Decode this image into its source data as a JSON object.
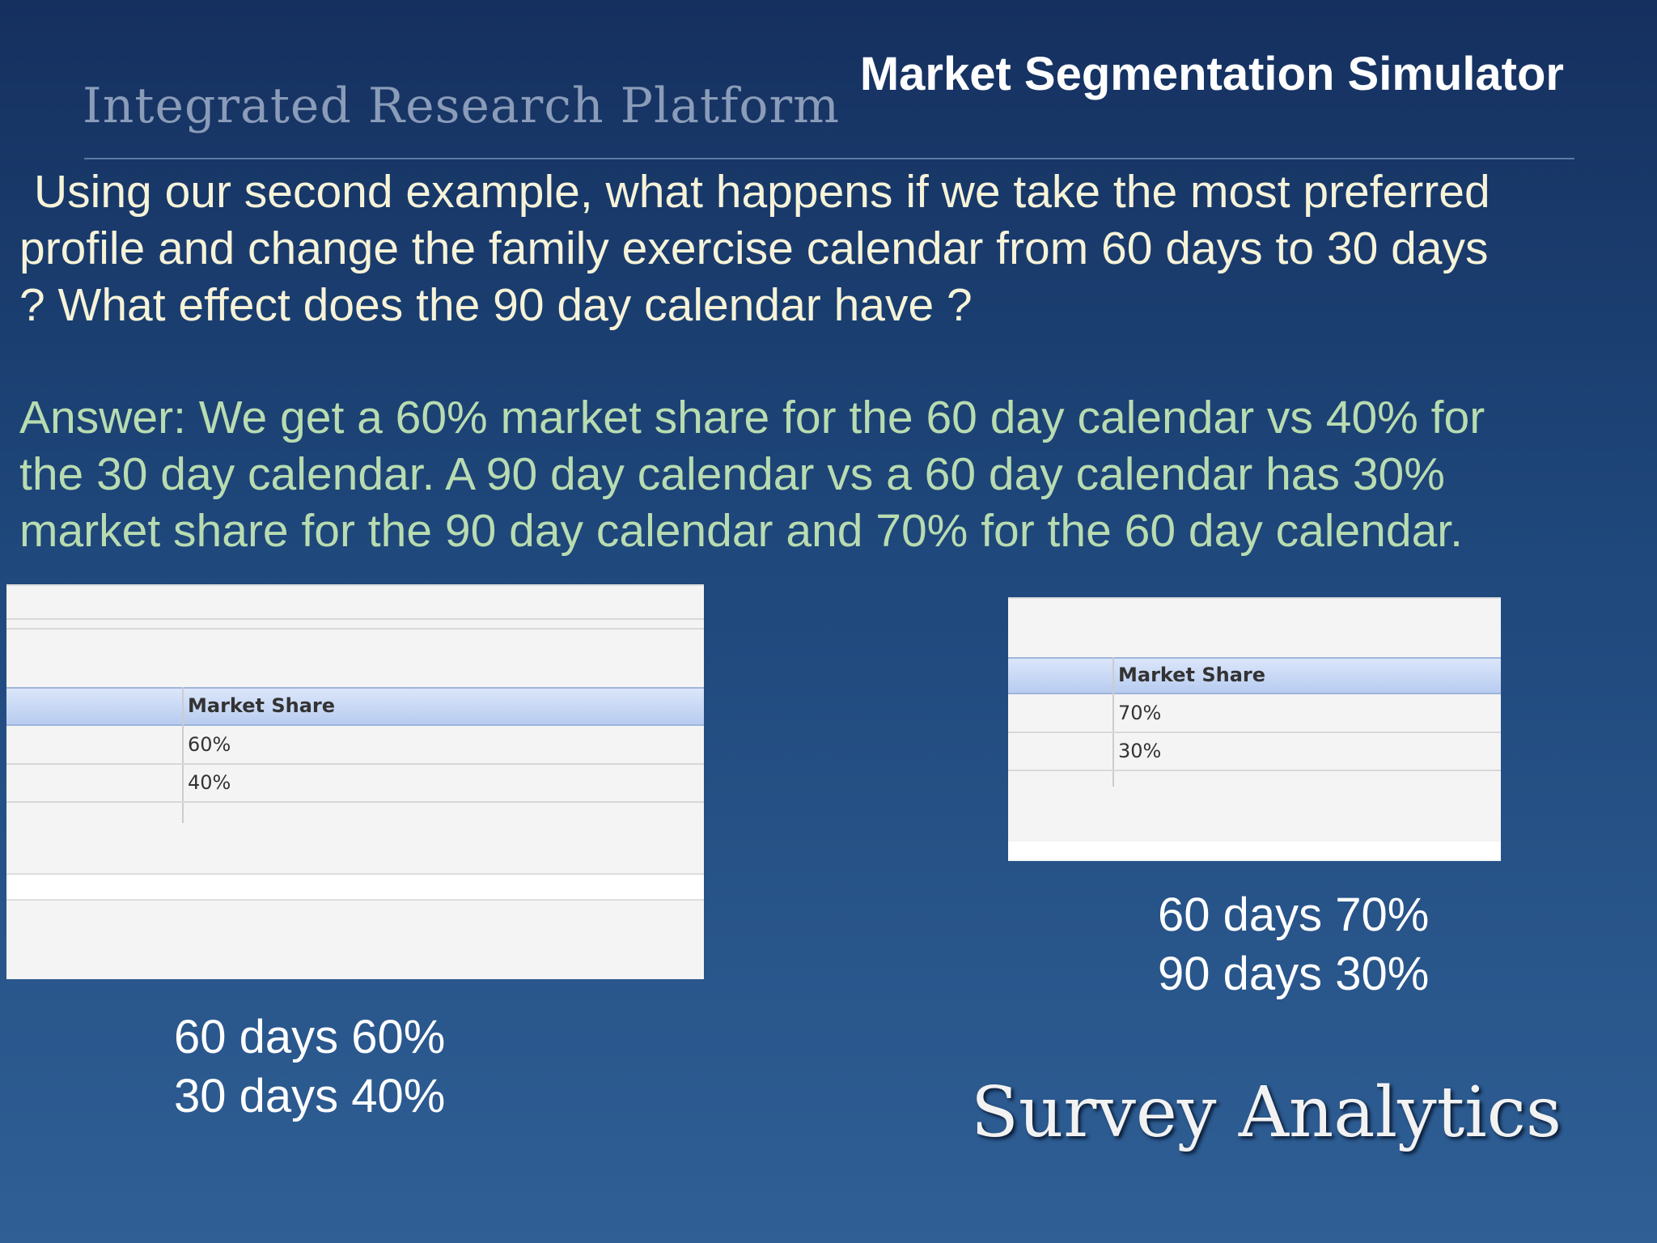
{
  "header": {
    "brand": "Integrated Research Platform",
    "title": "Market Segmentation Simulator"
  },
  "question": [
    "Using our second example, what happens if we take the most preferred",
    "profile and change the family exercise calendar from 60 days to 30 days",
    "? What effect does the 90 day calendar have ?"
  ],
  "answer": [
    "Answer:  We get a 60% market share for the 60 day calendar vs 40% for",
    "the 30 day calendar. A 90 day calendar vs a 60 day calendar has 30%",
    "market share for the 90 day calendar and 70% for the 60 day calendar."
  ],
  "tables": [
    {
      "header": "Market Share",
      "rows": [
        "60%",
        "40%"
      ],
      "caption": [
        "60 days 60%",
        "30 days 40%"
      ]
    },
    {
      "header": "Market Share",
      "rows": [
        "70%",
        "30%"
      ],
      "caption": [
        "60 days 70%",
        "90 days 30%"
      ]
    }
  ],
  "footer": {
    "logo": "Survey Analytics"
  }
}
